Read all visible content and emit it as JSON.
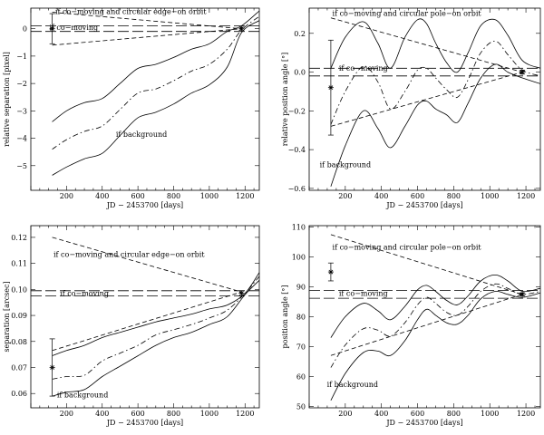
{
  "chart_data": [
    {
      "type": "line",
      "xlabel": "JD − 2453700 [days]",
      "ylabel": "relative separation [pixel]",
      "xlim": [
        0,
        1280
      ],
      "ylim": [
        -5.9,
        0.75
      ],
      "xticks": [
        200,
        400,
        600,
        800,
        1000,
        1200
      ],
      "yticks": [
        -5,
        -4,
        -3,
        -2,
        -1,
        0
      ],
      "ytick_labels": [
        "−5",
        "−4",
        "−3",
        "−2",
        "−1",
        "0"
      ],
      "annotations": [
        {
          "text": "if co−moving and circular edge−on orbit",
          "x": 560,
          "y": 0.53
        },
        {
          "text": "if co−moving",
          "x": 240,
          "y": -0.05
        },
        {
          "text": "if background",
          "x": 620,
          "y": -3.95
        }
      ],
      "series": [
        {
          "style": "dashed",
          "x": [
            120,
            1180
          ],
          "y": [
            0.6,
            0.0
          ]
        },
        {
          "style": "dashed",
          "x": [
            120,
            1180
          ],
          "y": [
            -0.6,
            0.0
          ]
        },
        {
          "style": "long-dashed",
          "x": [
            0,
            1280
          ],
          "y": [
            0.1,
            0.1
          ]
        },
        {
          "style": "long-dashed",
          "x": [
            0,
            1280
          ],
          "y": [
            -0.1,
            -0.1
          ]
        },
        {
          "style": "dashdot",
          "x": [
            120,
            200,
            300,
            400,
            500,
            600,
            700,
            800,
            900,
            1000,
            1100,
            1180,
            1280
          ],
          "y": [
            -4.4,
            -4.05,
            -3.75,
            -3.55,
            -2.95,
            -2.35,
            -2.2,
            -1.9,
            -1.55,
            -1.3,
            -0.75,
            -0.05,
            0.45
          ]
        },
        {
          "style": "solid",
          "x": [
            120,
            200,
            300,
            400,
            500,
            600,
            700,
            800,
            900,
            1000,
            1100,
            1180,
            1280
          ],
          "y": [
            -3.4,
            -3.0,
            -2.7,
            -2.55,
            -2.0,
            -1.45,
            -1.3,
            -1.05,
            -0.75,
            -0.55,
            -0.1,
            0.1,
            0.65
          ]
        },
        {
          "style": "solid",
          "x": [
            120,
            200,
            300,
            400,
            500,
            600,
            700,
            800,
            900,
            1000,
            1100,
            1180,
            1280
          ],
          "y": [
            -5.35,
            -5.05,
            -4.75,
            -4.55,
            -3.9,
            -3.25,
            -3.05,
            -2.75,
            -2.35,
            -2.05,
            -1.4,
            -0.15,
            0.3
          ]
        }
      ],
      "points": [
        {
          "x": 120,
          "y": 0.0,
          "err": 0.55,
          "marker": "asterisk"
        },
        {
          "x": 1180,
          "y": 0.0,
          "err": 0.05,
          "marker": "asterisk"
        }
      ]
    },
    {
      "type": "line",
      "xlabel": "JD − 2453700 [days]",
      "ylabel": "relative position angle [°]",
      "xlim": [
        0,
        1280
      ],
      "ylim": [
        -0.61,
        0.33
      ],
      "xticks": [
        200,
        400,
        600,
        800,
        1000,
        1200
      ],
      "yticks": [
        -0.6,
        -0.4,
        -0.2,
        0.0,
        0.2
      ],
      "ytick_labels": [
        "−0.6",
        "−0.4",
        "−0.2",
        "0.0",
        "0.2"
      ],
      "annotations": [
        {
          "text": "if co−moving and circular pole−on orbit",
          "x": 540,
          "y": 0.29
        },
        {
          "text": "if co−moving",
          "x": 300,
          "y": 0.007
        },
        {
          "text": "if background",
          "x": 200,
          "y": -0.49
        }
      ],
      "series": [
        {
          "style": "dashed",
          "x": [
            120,
            1180
          ],
          "y": [
            0.28,
            0.0
          ]
        },
        {
          "style": "dashed",
          "x": [
            120,
            1180
          ],
          "y": [
            -0.28,
            0.0
          ]
        },
        {
          "style": "long-dashed",
          "x": [
            0,
            1280
          ],
          "y": [
            0.02,
            0.02
          ]
        },
        {
          "style": "long-dashed",
          "x": [
            0,
            1280
          ],
          "y": [
            -0.02,
            -0.02
          ]
        },
        {
          "style": "solid",
          "x": [
            120,
            200,
            300,
            380,
            450,
            530,
            600,
            650,
            700,
            760,
            820,
            880,
            950,
            1030,
            1100,
            1180,
            1280
          ],
          "y": [
            0.02,
            0.18,
            0.26,
            0.15,
            0.02,
            0.18,
            0.27,
            0.25,
            0.15,
            0.05,
            0.0,
            0.1,
            0.24,
            0.27,
            0.19,
            0.06,
            0.02
          ]
        },
        {
          "style": "dashdot",
          "x": [
            120,
            200,
            300,
            380,
            450,
            530,
            600,
            650,
            700,
            760,
            820,
            880,
            950,
            1030,
            1100,
            1180,
            1280
          ],
          "y": [
            -0.27,
            -0.1,
            0.03,
            -0.05,
            -0.19,
            -0.1,
            0.01,
            0.02,
            -0.03,
            -0.09,
            -0.13,
            -0.04,
            0.1,
            0.16,
            0.09,
            0.01,
            -0.02
          ]
        },
        {
          "style": "solid",
          "x": [
            120,
            200,
            300,
            380,
            450,
            530,
            600,
            650,
            700,
            760,
            820,
            880,
            950,
            1030,
            1100,
            1180,
            1280
          ],
          "y": [
            -0.59,
            -0.38,
            -0.2,
            -0.29,
            -0.39,
            -0.28,
            -0.17,
            -0.15,
            -0.19,
            -0.22,
            -0.26,
            -0.16,
            -0.03,
            0.04,
            0.0,
            -0.03,
            -0.06
          ]
        }
      ],
      "points": [
        {
          "x": 120,
          "y": -0.08,
          "err": 0.245,
          "marker": "asterisk"
        },
        {
          "x": 1180,
          "y": 0.0,
          "err": 0.01,
          "marker": "asterisk"
        }
      ]
    },
    {
      "type": "line",
      "xlabel": "JD − 2453700 [days]",
      "ylabel": "separation [arcsec]",
      "xlim": [
        0,
        1280
      ],
      "ylim": [
        0.0545,
        0.1245
      ],
      "xticks": [
        200,
        400,
        600,
        800,
        1000,
        1200
      ],
      "yticks": [
        0.06,
        0.07,
        0.08,
        0.09,
        0.1,
        0.11,
        0.12
      ],
      "ytick_labels": [
        "0.06",
        "0.07",
        "0.08",
        "0.09",
        "0.10",
        "0.11",
        "0.12"
      ],
      "annotations": [
        {
          "text": "if co−moving and circular edge−on orbit",
          "x": 550,
          "y": 0.1125
        },
        {
          "text": "if co−moving",
          "x": 300,
          "y": 0.0975
        },
        {
          "text": "if background",
          "x": 290,
          "y": 0.0585
        }
      ],
      "series": [
        {
          "style": "dashed",
          "x": [
            120,
            1180
          ],
          "y": [
            0.12,
            0.099
          ]
        },
        {
          "style": "dashed",
          "x": [
            120,
            1180
          ],
          "y": [
            0.0765,
            0.099
          ]
        },
        {
          "style": "long-dashed",
          "x": [
            0,
            1280
          ],
          "y": [
            0.0995,
            0.0995
          ]
        },
        {
          "style": "long-dashed",
          "x": [
            0,
            1280
          ],
          "y": [
            0.0975,
            0.0975
          ]
        },
        {
          "style": "solid",
          "x": [
            120,
            200,
            300,
            400,
            500,
            600,
            700,
            800,
            900,
            1000,
            1100,
            1200,
            1280
          ],
          "y": [
            0.0745,
            0.0765,
            0.0785,
            0.0815,
            0.0835,
            0.0855,
            0.0875,
            0.089,
            0.0905,
            0.0925,
            0.094,
            0.0985,
            0.1065
          ]
        },
        {
          "style": "dashdot",
          "x": [
            120,
            200,
            300,
            400,
            500,
            600,
            700,
            800,
            900,
            1000,
            1100,
            1200,
            1280
          ],
          "y": [
            0.0655,
            0.0665,
            0.067,
            0.0725,
            0.0755,
            0.0785,
            0.0825,
            0.0845,
            0.0865,
            0.089,
            0.092,
            0.0985,
            0.105
          ]
        },
        {
          "style": "solid",
          "x": [
            120,
            200,
            300,
            400,
            500,
            600,
            700,
            800,
            900,
            1000,
            1100,
            1200,
            1280
          ],
          "y": [
            0.059,
            0.0605,
            0.0615,
            0.0665,
            0.0705,
            0.0745,
            0.0785,
            0.0815,
            0.0835,
            0.0865,
            0.0895,
            0.098,
            0.1035
          ]
        }
      ],
      "points": [
        {
          "x": 120,
          "y": 0.07,
          "err": 0.011,
          "marker": "asterisk"
        },
        {
          "x": 1180,
          "y": 0.0985,
          "err": 0.001,
          "marker": "asterisk"
        }
      ]
    },
    {
      "type": "line",
      "xlabel": "JD − 2453700 [days]",
      "ylabel": "position angle [°]",
      "xlim": [
        0,
        1280
      ],
      "ylim": [
        49.5,
        110.5
      ],
      "xticks": [
        200,
        400,
        600,
        800,
        1000,
        1200
      ],
      "yticks": [
        50,
        60,
        70,
        80,
        90,
        100,
        110
      ],
      "ytick_labels": [
        "50",
        "60",
        "70",
        "80",
        "90",
        "100",
        "110"
      ],
      "annotations": [
        {
          "text": "if co−moving and circular pole−on orbit",
          "x": 540,
          "y": 102.5
        },
        {
          "text": "if co−moving",
          "x": 300,
          "y": 87.0
        },
        {
          "text": "if background",
          "x": 240,
          "y": 56.5
        }
      ],
      "series": [
        {
          "style": "dashed",
          "x": [
            120,
            1180
          ],
          "y": [
            107.5,
            87.5
          ]
        },
        {
          "style": "dashed",
          "x": [
            120,
            1180
          ],
          "y": [
            67.0,
            87.5
          ]
        },
        {
          "style": "long-dashed",
          "x": [
            0,
            1280
          ],
          "y": [
            88.8,
            88.8
          ]
        },
        {
          "style": "long-dashed",
          "x": [
            0,
            1280
          ],
          "y": [
            86.2,
            86.2
          ]
        },
        {
          "style": "solid",
          "x": [
            120,
            200,
            300,
            380,
            450,
            530,
            600,
            650,
            700,
            760,
            820,
            880,
            950,
            1030,
            1100,
            1180,
            1280
          ],
          "y": [
            73.0,
            80.0,
            84.5,
            82.0,
            79.0,
            83.5,
            89.0,
            90.5,
            88.5,
            85.5,
            84.0,
            87.0,
            92.0,
            94.0,
            92.0,
            88.5,
            89.5
          ]
        },
        {
          "style": "dashdot",
          "x": [
            120,
            200,
            300,
            380,
            450,
            530,
            600,
            650,
            700,
            760,
            820,
            880,
            950,
            1030,
            1100,
            1180,
            1280
          ],
          "y": [
            63.0,
            70.5,
            76.0,
            75.5,
            73.5,
            78.0,
            84.0,
            86.5,
            84.5,
            81.5,
            80.5,
            83.5,
            88.5,
            91.0,
            89.5,
            87.5,
            88.5
          ]
        },
        {
          "style": "solid",
          "x": [
            120,
            200,
            300,
            380,
            450,
            530,
            600,
            650,
            700,
            760,
            820,
            880,
            950,
            1030,
            1100,
            1180,
            1280
          ],
          "y": [
            52.0,
            61.0,
            68.0,
            68.5,
            67.0,
            72.0,
            79.0,
            82.5,
            80.5,
            78.0,
            77.5,
            80.5,
            86.0,
            88.5,
            87.5,
            86.5,
            88.0
          ]
        }
      ],
      "points": [
        {
          "x": 120,
          "y": 95.0,
          "err": 3.0,
          "marker": "asterisk"
        },
        {
          "x": 1180,
          "y": 87.5,
          "err": 0.5,
          "marker": "asterisk"
        }
      ]
    }
  ]
}
